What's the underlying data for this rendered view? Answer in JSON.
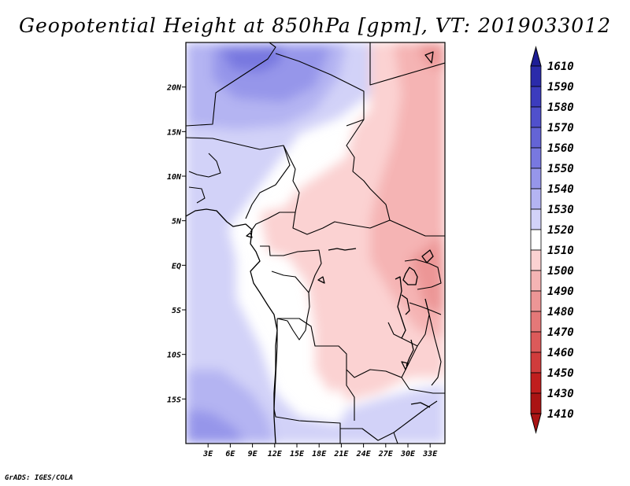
{
  "title": "Geopotential Height at 850hPa [gpm], VT: 2019033012",
  "credit": "GrADS: IGES/COLA",
  "map": {
    "lon_range": [
      0,
      35
    ],
    "lat_range": [
      -20,
      25
    ],
    "lon_ticks": [
      "3E",
      "6E",
      "9E",
      "12E",
      "15E",
      "18E",
      "21E",
      "24E",
      "27E",
      "30E",
      "33E"
    ],
    "lat_ticks": [
      "20N",
      "15N",
      "10N",
      "5N",
      "EQ",
      "5S",
      "10S",
      "15S"
    ]
  },
  "colorbar": {
    "levels": [
      "1610",
      "1590",
      "1580",
      "1570",
      "1560",
      "1550",
      "1540",
      "1530",
      "1520",
      "1510",
      "1500",
      "1490",
      "1480",
      "1470",
      "1460",
      "1450",
      "1430",
      "1410"
    ],
    "colors": [
      "#1e1e96",
      "#2b2baa",
      "#3c3cbe",
      "#5050cc",
      "#6464d6",
      "#7878e0",
      "#9696ea",
      "#b4b4f2",
      "#d2d2f8",
      "#ffffff",
      "#fbd2d2",
      "#f5b4b4",
      "#ec9696",
      "#e47878",
      "#dc5a5a",
      "#d03c3c",
      "#c01e1e",
      "#aa1414"
    ],
    "extend": "both"
  }
}
